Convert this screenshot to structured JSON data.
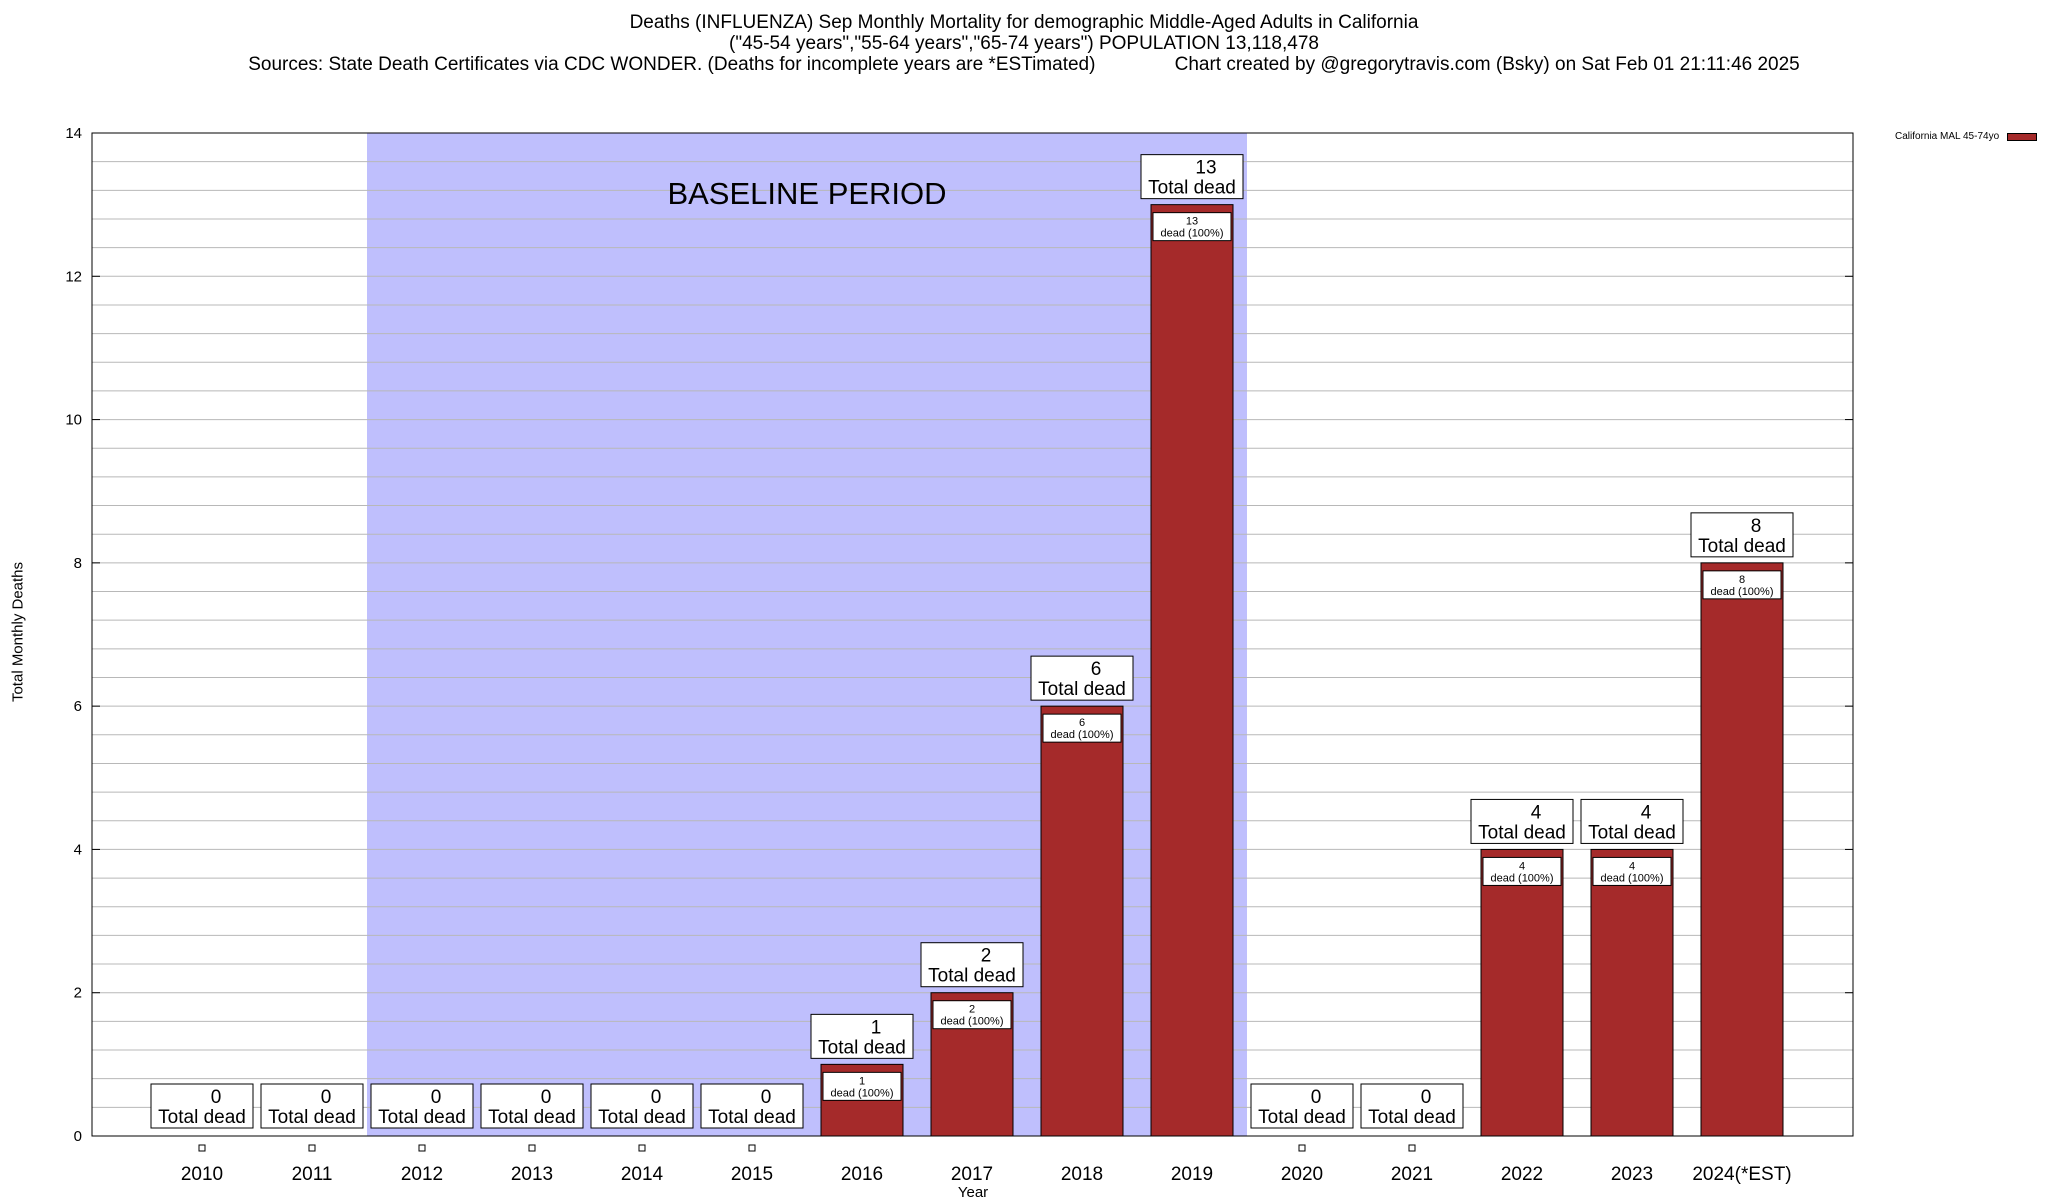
{
  "chart_data": {
    "type": "bar",
    "title": "Deaths (INFLUENZA) Sep Monthly Mortality for demographic Middle-Aged Adults in California",
    "subtitle": "(\"45-54 years\",\"55-64 years\",\"65-74 years\") POPULATION 13,118,478",
    "sources_line": "Sources: State Death Certificates via CDC WONDER. (Deaths for incomplete years are *ESTimated)               Chart created by @gregorytravis.com (Bsky) on Sat Feb 01 21:11:46 2025",
    "xlabel": "Year",
    "ylabel": "Total Monthly Deaths",
    "ylim": [
      0,
      14
    ],
    "yticks": [
      0,
      2,
      4,
      6,
      8,
      10,
      12,
      14
    ],
    "grid": true,
    "legend_position": "top-right",
    "categories": [
      "2010",
      "2011",
      "2012",
      "2013",
      "2014",
      "2015",
      "2016",
      "2017",
      "2018",
      "2019",
      "2020",
      "2021",
      "2022",
      "2023",
      "2024(*EST)"
    ],
    "series": [
      {
        "name": "California MAL 45-74yo",
        "values": [
          0,
          0,
          0,
          0,
          0,
          0,
          1,
          2,
          6,
          13,
          0,
          0,
          4,
          4,
          8
        ],
        "color": "#a52a2a"
      }
    ],
    "total_label": "Total dead",
    "inner_label_suffix": "dead (100%)",
    "baseline": {
      "label": "BASELINE PERIOD",
      "from": "2012",
      "to": "2019",
      "color": "#bfbffd"
    }
  }
}
